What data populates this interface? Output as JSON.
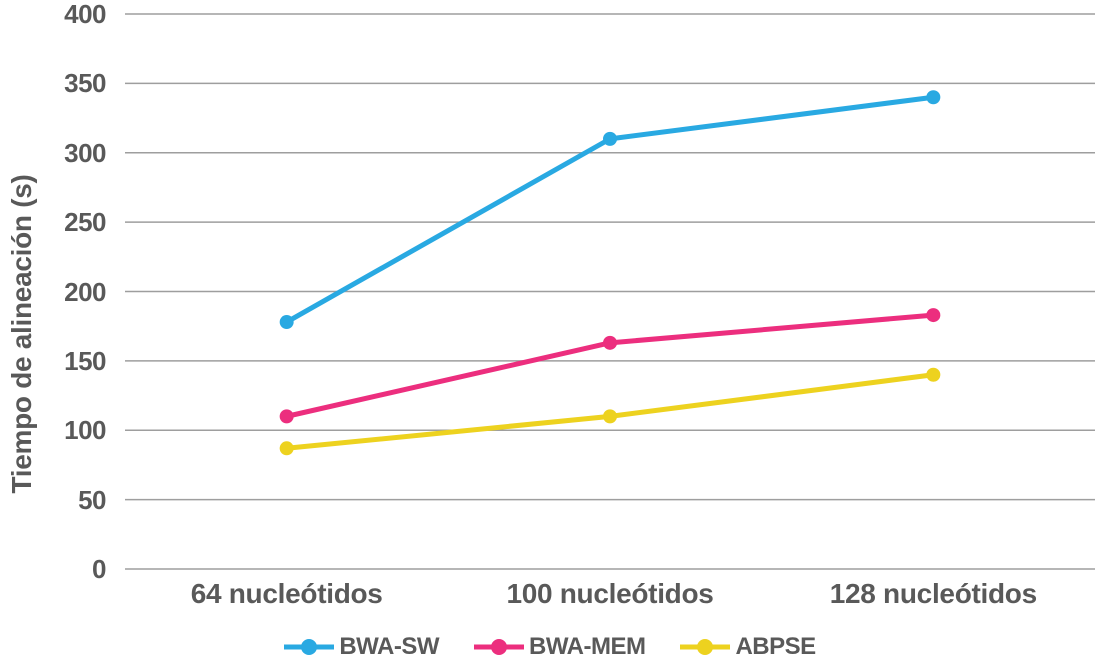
{
  "chart_data": {
    "type": "line",
    "title": "",
    "xlabel": "",
    "ylabel": "Tiempo de alineación (s)",
    "categories": [
      "64 nucleótidos",
      "100 nucleótidos",
      "128 nucleótidos"
    ],
    "series": [
      {
        "name": "BWA-SW",
        "color": "#29A9E2",
        "values": [
          178,
          310,
          340
        ]
      },
      {
        "name": "BWA-MEM",
        "color": "#EC2E7E",
        "values": [
          110,
          163,
          183
        ]
      },
      {
        "name": "ABPSE",
        "color": "#EDD21F",
        "values": [
          87,
          110,
          140
        ]
      }
    ],
    "ylim": [
      0,
      400
    ],
    "yticks": [
      0,
      50,
      100,
      150,
      200,
      250,
      300,
      350,
      400
    ],
    "grid": true,
    "gridline_color": "#9e9e9e",
    "text_color": "#595959",
    "legend_position": "bottom"
  }
}
